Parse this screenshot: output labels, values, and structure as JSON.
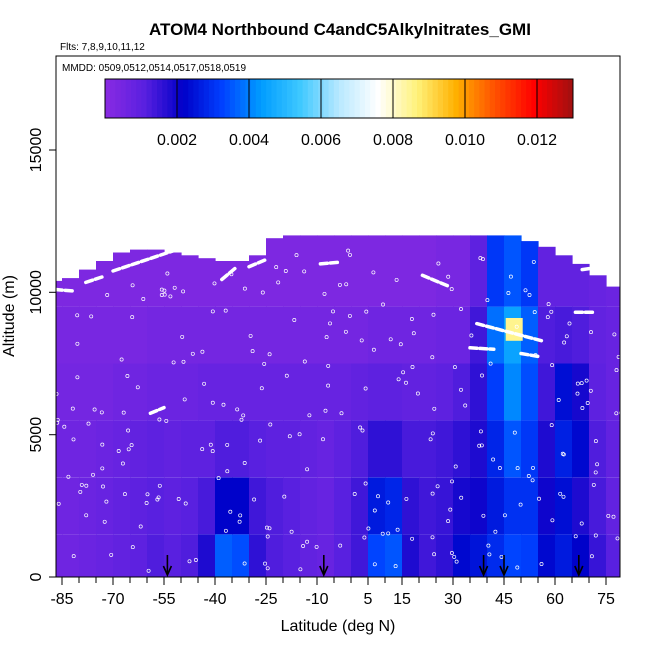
{
  "chart_data": {
    "type": "heatmap",
    "title": "ATOM4 Northbound C4andC5Alkylnitrates_GMI",
    "flights_label": "Flts: 7,8,9,10,11,12",
    "dates_label": "MMDD: 0509,0512,0514,0517,0518,0519",
    "xlabel": "Latitude (deg N)",
    "ylabel": "Altitude (m)",
    "xlim": [
      -90,
      85
    ],
    "ylim": [
      0,
      17500
    ],
    "x_tick_values": [
      -85,
      -70,
      -55,
      -40,
      -25,
      -10,
      5,
      15,
      30,
      45,
      60,
      75
    ],
    "x_tick_labels": [
      "-85",
      "-70",
      "-55",
      "-40",
      "-25",
      "-10",
      "5",
      "15",
      "30",
      "45",
      "60",
      "75"
    ],
    "y_tick_values": [
      0,
      5000,
      10000,
      15000
    ],
    "y_tick_labels": [
      "0",
      "5000",
      "10000",
      "15000"
    ],
    "colorbar": {
      "min": 0,
      "max": 0.013,
      "tick_values": [
        0.002,
        0.004,
        0.006,
        0.008,
        0.01,
        0.012
      ],
      "tick_labels": [
        "0.002",
        "0.004",
        "0.006",
        "0.008",
        "0.010",
        "0.012"
      ],
      "colors": [
        "#8a2be2",
        "#5a20e0",
        "#0000c8",
        "#0040ff",
        "#009cff",
        "#3ec8ff",
        "#b8e8ff",
        "#ffffff",
        "#fff27a",
        "#ffb000",
        "#ff5000",
        "#ff0000",
        "#a01010"
      ]
    },
    "columns": [
      {
        "lat": -87.5,
        "top": 10400,
        "c": [
          0.0006,
          0.0006,
          0.0006,
          0.0005,
          0.0004,
          0.0003
        ]
      },
      {
        "lat": -82.5,
        "top": 10500,
        "c": [
          0.0006,
          0.0006,
          0.0006,
          0.0005,
          0.0004,
          0.0003
        ]
      },
      {
        "lat": -77.5,
        "top": 10800,
        "c": [
          0.0007,
          0.0007,
          0.0006,
          0.0005,
          0.0004,
          0.0003
        ]
      },
      {
        "lat": -72.5,
        "top": 11100,
        "c": [
          0.0008,
          0.0008,
          0.0007,
          0.0005,
          0.0004,
          0.0003
        ]
      },
      {
        "lat": -67.5,
        "top": 11400,
        "c": [
          0.0009,
          0.0009,
          0.0008,
          0.0006,
          0.0004,
          0.0003
        ]
      },
      {
        "lat": -62.5,
        "top": 11500,
        "c": [
          0.001,
          0.001,
          0.0009,
          0.0006,
          0.0004,
          0.0003
        ]
      },
      {
        "lat": -57.5,
        "top": 11500,
        "c": [
          0.0012,
          0.0011,
          0.001,
          0.0007,
          0.0005,
          0.0003
        ]
      },
      {
        "lat": -52.5,
        "top": 11400,
        "c": [
          0.0011,
          0.001,
          0.0009,
          0.0007,
          0.0005,
          0.0003
        ]
      },
      {
        "lat": -47.5,
        "top": 11300,
        "c": [
          0.0012,
          0.0011,
          0.001,
          0.0007,
          0.0005,
          0.0003
        ]
      },
      {
        "lat": -42.5,
        "top": 11200,
        "c": [
          0.0018,
          0.0013,
          0.001,
          0.0008,
          0.0005,
          0.0003
        ]
      },
      {
        "lat": -37.5,
        "top": 11100,
        "c": [
          0.0036,
          0.0022,
          0.0012,
          0.0008,
          0.0005,
          0.0003
        ]
      },
      {
        "lat": -32.5,
        "top": 11100,
        "c": [
          0.0034,
          0.0022,
          0.0012,
          0.0008,
          0.0005,
          0.0003
        ]
      },
      {
        "lat": -27.5,
        "top": 11300,
        "c": [
          0.0016,
          0.0014,
          0.0011,
          0.0008,
          0.0005,
          0.0003
        ]
      },
      {
        "lat": -22.5,
        "top": 11900,
        "c": [
          0.0012,
          0.0012,
          0.001,
          0.0008,
          0.0005,
          0.0003
        ]
      },
      {
        "lat": -17.5,
        "top": 12000,
        "c": [
          0.0011,
          0.0011,
          0.001,
          0.0008,
          0.0005,
          0.0003
        ]
      },
      {
        "lat": -12.5,
        "top": 12000,
        "c": [
          0.0009,
          0.0009,
          0.0009,
          0.0008,
          0.0005,
          0.0003
        ]
      },
      {
        "lat": -7.5,
        "top": 12000,
        "c": [
          0.0008,
          0.0008,
          0.0008,
          0.0008,
          0.0005,
          0.0003
        ]
      },
      {
        "lat": -2.5,
        "top": 12000,
        "c": [
          0.0011,
          0.0011,
          0.001,
          0.0008,
          0.0005,
          0.0003
        ]
      },
      {
        "lat": 2.5,
        "top": 12000,
        "c": [
          0.0014,
          0.0014,
          0.0012,
          0.0009,
          0.0005,
          0.0003
        ]
      },
      {
        "lat": 7.5,
        "top": 12000,
        "c": [
          0.0033,
          0.0026,
          0.0016,
          0.001,
          0.0006,
          0.0003
        ]
      },
      {
        "lat": 12.5,
        "top": 12000,
        "c": [
          0.0035,
          0.0028,
          0.0016,
          0.001,
          0.0006,
          0.0003
        ]
      },
      {
        "lat": 17.5,
        "top": 12000,
        "c": [
          0.0018,
          0.0016,
          0.0013,
          0.0009,
          0.0006,
          0.0003
        ]
      },
      {
        "lat": 22.5,
        "top": 12000,
        "c": [
          0.0014,
          0.0014,
          0.0013,
          0.0009,
          0.0006,
          0.0003
        ]
      },
      {
        "lat": 27.5,
        "top": 12000,
        "c": [
          0.0016,
          0.0015,
          0.0014,
          0.001,
          0.0007,
          0.0004
        ]
      },
      {
        "lat": 32.5,
        "top": 12000,
        "c": [
          0.0023,
          0.0019,
          0.0016,
          0.0012,
          0.0007,
          0.0004
        ]
      },
      {
        "lat": 37.5,
        "top": 12000,
        "c": [
          0.0025,
          0.002,
          0.0018,
          0.0016,
          0.0014,
          0.001
        ]
      },
      {
        "lat": 42.5,
        "top": 12000,
        "c": [
          0.0029,
          0.0026,
          0.0028,
          0.0032,
          0.0038,
          0.0031
        ]
      },
      {
        "lat": 47.5,
        "top": 12000,
        "c": [
          0.0033,
          0.003,
          0.0035,
          0.0041,
          0.0045,
          0.0035
        ]
      },
      {
        "lat": 52.5,
        "top": 11800,
        "c": [
          0.0032,
          0.003,
          0.0031,
          0.0034,
          0.0036,
          0.0031
        ]
      },
      {
        "lat": 57.5,
        "top": 11600,
        "c": [
          0.0023,
          0.002,
          0.0018,
          0.0014,
          0.0012,
          0.0009
        ]
      },
      {
        "lat": 62.5,
        "top": 11300,
        "c": [
          0.0026,
          0.0024,
          0.0027,
          0.0024,
          0.0013,
          0.0009
        ]
      },
      {
        "lat": 67.5,
        "top": 11000,
        "c": [
          0.0022,
          0.0018,
          0.0023,
          0.0019,
          0.0012,
          0.0009
        ]
      },
      {
        "lat": 72.5,
        "top": 10600,
        "c": [
          0.0015,
          0.0013,
          0.0012,
          0.001,
          0.0009,
          0.0008
        ]
      },
      {
        "lat": 77.5,
        "top": 10200,
        "c": [
          0.0011,
          0.0009,
          0.0009,
          0.0008,
          0.0008,
          0.0007
        ]
      },
      {
        "lat": 82.5,
        "top": 9300,
        "c": [
          0.0009,
          0.0008,
          0.0008,
          0.0008,
          0.0007,
          0.0007
        ]
      }
    ],
    "level_edges": [
      0,
      1500,
      3500,
      5500,
      7500,
      9500,
      12500
    ],
    "hotspot": {
      "lat": 48,
      "alt": 8700,
      "value": 0.0085
    },
    "flight_tracks": [
      {
        "x": [
          -87,
          -82
        ],
        "y": [
          10100,
          10050
        ]
      },
      {
        "x": [
          -78,
          -73
        ],
        "y": [
          10350,
          10550
        ]
      },
      {
        "x": [
          -70,
          -50
        ],
        "y": [
          10750,
          11550
        ]
      },
      {
        "x": [
          -38,
          -34
        ],
        "y": [
          10450,
          10850
        ]
      },
      {
        "x": [
          -30,
          -25
        ],
        "y": [
          10900,
          11150
        ]
      },
      {
        "x": [
          -22,
          -20
        ],
        "y": [
          12150,
          12200
        ]
      },
      {
        "x": [
          -9,
          -4
        ],
        "y": [
          11000,
          11050
        ]
      },
      {
        "x": [
          21,
          29
        ],
        "y": [
          10600,
          10200
        ]
      },
      {
        "x": [
          37,
          56
        ],
        "y": [
          8900,
          8300
        ]
      },
      {
        "x": [
          35,
          42
        ],
        "y": [
          8050,
          8000
        ]
      },
      {
        "x": [
          50,
          55
        ],
        "y": [
          7850,
          7750
        ]
      },
      {
        "x": [
          68,
          74
        ],
        "y": [
          10800,
          10900
        ]
      },
      {
        "x": [
          68,
          73
        ],
        "y": [
          11100,
          11250
        ]
      },
      {
        "x": [
          66,
          71
        ],
        "y": [
          9300,
          9300
        ]
      },
      {
        "x": [
          -59,
          -55
        ],
        "y": [
          5750,
          5950
        ]
      },
      {
        "x": [
          31,
          31
        ],
        "y": [
          12700,
          13000
        ]
      }
    ],
    "arrows_lat": [
      -54,
      -8,
      39,
      45,
      67
    ]
  }
}
